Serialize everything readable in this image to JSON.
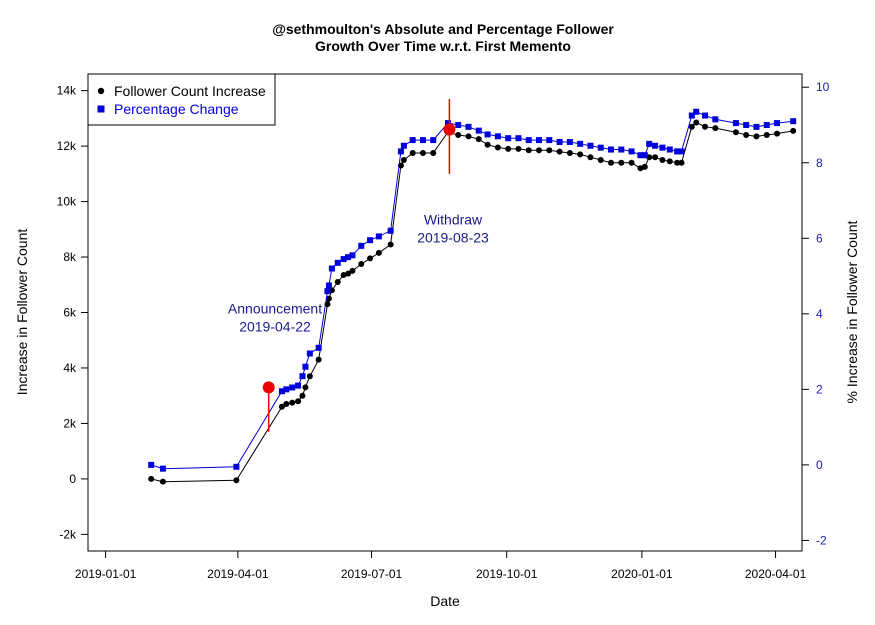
{
  "chart_data": {
    "type": "line",
    "title_line1": "@sethmoulton's Absolute and Percentage Follower",
    "title_line2": "Growth Over Time w.r.t. First Memento",
    "xlabel": "Date",
    "ylabel_left": "Increase in Follower Count",
    "ylabel_right": "% Increase in Follower Count",
    "x_ticks": [
      "2019-01-01",
      "2019-04-01",
      "2019-07-01",
      "2019-10-01",
      "2020-01-01",
      "2020-04-01"
    ],
    "y_left_ticks": [
      "-2k",
      "0",
      "2k",
      "4k",
      "6k",
      "8k",
      "10k",
      "12k",
      "14k"
    ],
    "y_left_tick_values": [
      -2000,
      0,
      2000,
      4000,
      6000,
      8000,
      10000,
      12000,
      14000
    ],
    "y_right_ticks": [
      "-2",
      "0",
      "2",
      "4",
      "6",
      "8",
      "10"
    ],
    "y_right_tick_values": [
      -2,
      0,
      2,
      4,
      6,
      8,
      10
    ],
    "xlim": [
      "2018-12-20",
      "2020-04-19"
    ],
    "ylim_left": [
      -2600,
      14600
    ],
    "ylim_right": [
      -2.28,
      10.35
    ],
    "colors": {
      "follower": "#000000",
      "percentage": "#0000dd",
      "event": "#ee0000",
      "annotation": "#1a1a8c"
    },
    "legend": {
      "position": "top-left",
      "entries": [
        {
          "label": "Follower Count Increase",
          "color": "#000000"
        },
        {
          "label": "Percentage Change",
          "color": "#0000dd"
        }
      ]
    },
    "series": [
      {
        "name": "Follower Count Increase",
        "axis": "left",
        "points": [
          [
            "2019-02-01",
            0
          ],
          [
            "2019-02-09",
            -100
          ],
          [
            "2019-03-31",
            -50
          ],
          [
            "2019-05-01",
            2600
          ],
          [
            "2019-05-04",
            2700
          ],
          [
            "2019-05-08",
            2750
          ],
          [
            "2019-05-12",
            2800
          ],
          [
            "2019-05-15",
            3000
          ],
          [
            "2019-05-17",
            3300
          ],
          [
            "2019-05-20",
            3700
          ],
          [
            "2019-05-26",
            4300
          ],
          [
            "2019-06-01",
            6300
          ],
          [
            "2019-06-02",
            6500
          ],
          [
            "2019-06-04",
            6800
          ],
          [
            "2019-06-08",
            7100
          ],
          [
            "2019-06-12",
            7350
          ],
          [
            "2019-06-15",
            7400
          ],
          [
            "2019-06-18",
            7500
          ],
          [
            "2019-06-24",
            7750
          ],
          [
            "2019-06-30",
            7950
          ],
          [
            "2019-07-06",
            8150
          ],
          [
            "2019-07-14",
            8450
          ],
          [
            "2019-07-21",
            11300
          ],
          [
            "2019-07-23",
            11500
          ],
          [
            "2019-07-29",
            11750
          ],
          [
            "2019-08-05",
            11750
          ],
          [
            "2019-08-12",
            11750
          ],
          [
            "2019-08-22",
            12500
          ],
          [
            "2019-08-29",
            12400
          ],
          [
            "2019-09-05",
            12350
          ],
          [
            "2019-09-12",
            12250
          ],
          [
            "2019-09-18",
            12050
          ],
          [
            "2019-09-25",
            11950
          ],
          [
            "2019-10-02",
            11900
          ],
          [
            "2019-10-09",
            11900
          ],
          [
            "2019-10-16",
            11850
          ],
          [
            "2019-10-23",
            11850
          ],
          [
            "2019-10-30",
            11850
          ],
          [
            "2019-11-06",
            11800
          ],
          [
            "2019-11-13",
            11750
          ],
          [
            "2019-11-20",
            11700
          ],
          [
            "2019-11-27",
            11600
          ],
          [
            "2019-12-04",
            11500
          ],
          [
            "2019-12-11",
            11400
          ],
          [
            "2019-12-18",
            11400
          ],
          [
            "2019-12-25",
            11400
          ],
          [
            "2019-12-31",
            11200
          ],
          [
            "2020-01-03",
            11250
          ],
          [
            "2020-01-06",
            11600
          ],
          [
            "2020-01-10",
            11600
          ],
          [
            "2020-01-15",
            11500
          ],
          [
            "2020-01-20",
            11450
          ],
          [
            "2020-01-25",
            11400
          ],
          [
            "2020-01-28",
            11400
          ],
          [
            "2020-02-04",
            12700
          ],
          [
            "2020-02-07",
            12850
          ],
          [
            "2020-02-13",
            12700
          ],
          [
            "2020-02-20",
            12650
          ],
          [
            "2020-03-05",
            12500
          ],
          [
            "2020-03-12",
            12400
          ],
          [
            "2020-03-19",
            12350
          ],
          [
            "2020-03-26",
            12400
          ],
          [
            "2020-04-02",
            12450
          ],
          [
            "2020-04-13",
            12550
          ]
        ]
      },
      {
        "name": "Percentage Change",
        "axis": "right",
        "points": [
          [
            "2019-02-01",
            0
          ],
          [
            "2019-02-09",
            -0.1
          ],
          [
            "2019-03-31",
            -0.05
          ],
          [
            "2019-05-01",
            1.95
          ],
          [
            "2019-05-04",
            2.0
          ],
          [
            "2019-05-08",
            2.05
          ],
          [
            "2019-05-12",
            2.1
          ],
          [
            "2019-05-15",
            2.35
          ],
          [
            "2019-05-17",
            2.6
          ],
          [
            "2019-05-20",
            2.95
          ],
          [
            "2019-05-26",
            3.1
          ],
          [
            "2019-06-01",
            4.6
          ],
          [
            "2019-06-02",
            4.75
          ],
          [
            "2019-06-04",
            5.2
          ],
          [
            "2019-06-08",
            5.35
          ],
          [
            "2019-06-12",
            5.45
          ],
          [
            "2019-06-15",
            5.5
          ],
          [
            "2019-06-18",
            5.55
          ],
          [
            "2019-06-24",
            5.8
          ],
          [
            "2019-06-30",
            5.95
          ],
          [
            "2019-07-06",
            6.05
          ],
          [
            "2019-07-14",
            6.2
          ],
          [
            "2019-07-21",
            8.3
          ],
          [
            "2019-07-23",
            8.45
          ],
          [
            "2019-07-29",
            8.6
          ],
          [
            "2019-08-05",
            8.6
          ],
          [
            "2019-08-12",
            8.6
          ],
          [
            "2019-08-22",
            9.05
          ],
          [
            "2019-08-29",
            9.0
          ],
          [
            "2019-09-05",
            8.95
          ],
          [
            "2019-09-12",
            8.85
          ],
          [
            "2019-09-18",
            8.75
          ],
          [
            "2019-09-25",
            8.7
          ],
          [
            "2019-10-02",
            8.65
          ],
          [
            "2019-10-09",
            8.65
          ],
          [
            "2019-10-16",
            8.6
          ],
          [
            "2019-10-23",
            8.6
          ],
          [
            "2019-10-30",
            8.6
          ],
          [
            "2019-11-06",
            8.55
          ],
          [
            "2019-11-13",
            8.55
          ],
          [
            "2019-11-20",
            8.5
          ],
          [
            "2019-11-27",
            8.45
          ],
          [
            "2019-12-04",
            8.4
          ],
          [
            "2019-12-11",
            8.35
          ],
          [
            "2019-12-18",
            8.35
          ],
          [
            "2019-12-25",
            8.3
          ],
          [
            "2019-12-31",
            8.2
          ],
          [
            "2020-01-03",
            8.2
          ],
          [
            "2020-01-06",
            8.5
          ],
          [
            "2020-01-10",
            8.45
          ],
          [
            "2020-01-15",
            8.4
          ],
          [
            "2020-01-20",
            8.35
          ],
          [
            "2020-01-25",
            8.3
          ],
          [
            "2020-01-28",
            8.3
          ],
          [
            "2020-02-04",
            9.25
          ],
          [
            "2020-02-07",
            9.35
          ],
          [
            "2020-02-13",
            9.25
          ],
          [
            "2020-02-20",
            9.15
          ],
          [
            "2020-03-05",
            9.05
          ],
          [
            "2020-03-12",
            9.0
          ],
          [
            "2020-03-19",
            8.95
          ],
          [
            "2020-03-26",
            9.0
          ],
          [
            "2020-04-02",
            9.05
          ],
          [
            "2020-04-13",
            9.1
          ]
        ]
      }
    ],
    "events": [
      {
        "date": "2019-04-22",
        "marker_value": 3300,
        "line_from": 1700,
        "line_to": 3300,
        "label_line1": "Announcement",
        "label_line2": "2019-04-22",
        "label_side": "upper-left"
      },
      {
        "date": "2019-08-23",
        "marker_value": 12600,
        "line_from": 11000,
        "line_to": 13700,
        "label_line1": "Withdraw",
        "label_line2": "2019-08-23",
        "label_side": "lower-left"
      }
    ]
  }
}
